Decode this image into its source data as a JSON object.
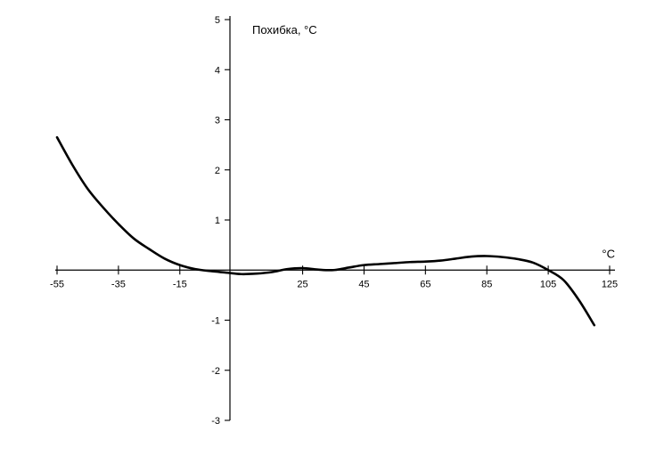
{
  "chart_data": {
    "type": "line",
    "title": "",
    "ylabel": "Похибка, °C",
    "xlabel": "°C",
    "xlim": [
      -55,
      125
    ],
    "ylim": [
      -3,
      5
    ],
    "x_ticks": [
      -55,
      -35,
      -15,
      25,
      45,
      65,
      85,
      105,
      125
    ],
    "x_tick_labels": [
      "-55",
      "-35",
      "-15",
      "25",
      "45",
      "65",
      "85",
      "105",
      "125"
    ],
    "y_ticks": [
      5,
      4,
      3,
      2,
      1,
      -1,
      -2,
      -3
    ],
    "y_tick_labels": [
      "5",
      "4",
      "3",
      "2",
      "1",
      "-1",
      "-2",
      "-3"
    ],
    "grid": false,
    "colors": {
      "line": "#000000",
      "axis": "#000000"
    },
    "series": [
      {
        "x": [
          -55,
          -50,
          -45,
          -40,
          -35,
          -30,
          -25,
          -20,
          -15,
          -10,
          -5,
          0,
          5,
          10,
          15,
          20,
          25,
          30,
          35,
          40,
          45,
          50,
          55,
          60,
          65,
          70,
          75,
          80,
          85,
          90,
          95,
          100,
          105,
          110,
          115,
          120
        ],
        "y": [
          2.65,
          2.1,
          1.62,
          1.25,
          0.92,
          0.63,
          0.42,
          0.23,
          0.1,
          0.02,
          -0.02,
          -0.05,
          -0.08,
          -0.07,
          -0.04,
          0.02,
          0.04,
          0.01,
          0.0,
          0.05,
          0.1,
          0.12,
          0.14,
          0.16,
          0.17,
          0.19,
          0.23,
          0.27,
          0.28,
          0.26,
          0.22,
          0.15,
          0.0,
          -0.2,
          -0.6,
          -1.1
        ]
      }
    ]
  }
}
